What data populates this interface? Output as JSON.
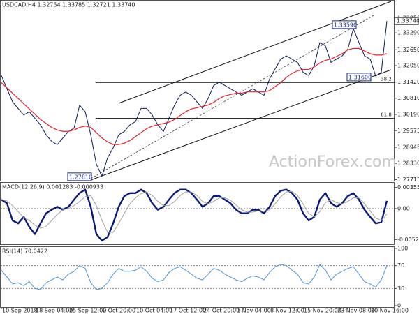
{
  "chart_data": [
    {
      "type": "line",
      "title": "USDCAD,H4 1.32754 1.33785 1.32721 1.33740",
      "watermark": "ActionForex.com",
      "categories": [
        "10 Sep 2018",
        null,
        null,
        null,
        null,
        null,
        "18 Sep 04:00",
        null,
        null,
        null,
        null,
        null,
        "25 Sep 12:00",
        null,
        null,
        null,
        null,
        null,
        "2 Oct 20:00",
        null,
        null,
        null,
        null,
        null,
        "10 Oct 04:00",
        null,
        null,
        null,
        null,
        null,
        "17 Oct 12:00",
        null,
        null,
        null,
        null,
        null,
        "24 Oct 20:00",
        null,
        null,
        null,
        null,
        null,
        "1 Nov 04:00",
        null,
        null,
        null,
        null,
        null,
        "8 Nov 12:00",
        null,
        null,
        null,
        null,
        null,
        "15 Nov 20:00",
        null,
        null,
        null,
        null,
        null,
        "23 Nov 08:00",
        null,
        null,
        null,
        null,
        null,
        "30 Nov 16:00",
        null,
        null,
        null
      ],
      "series": [
        {
          "color": "#0b1a5a",
          "values": [
            1.3167,
            1.3117,
            1.3067,
            1.3042,
            1.3017,
            1.30295,
            1.30045,
            1.29795,
            1.2942,
            1.2917,
            1.29045,
            1.29295,
            1.29545,
            1.2967,
            1.30545,
            1.30295,
            1.2942,
            1.28295,
            1.2785,
            1.28545,
            1.2892,
            1.2942,
            1.29545,
            1.29795,
            1.2992,
            1.3042,
            1.3042,
            1.3017,
            1.29795,
            1.29545,
            1.30045,
            1.30545,
            1.3092,
            1.31045,
            1.3092,
            1.3067,
            1.3042,
            1.30795,
            1.31295,
            1.3142,
            1.31295,
            1.3117,
            1.31045,
            1.3092,
            1.31045,
            1.3117,
            1.31045,
            1.3092,
            1.31545,
            1.3192,
            1.32295,
            1.3242,
            1.32295,
            1.3217,
            1.31795,
            1.3167,
            1.32045,
            1.3292,
            1.32795,
            1.3217,
            1.32295,
            1.3242,
            1.3267,
            1.3345,
            1.3292,
            1.3242,
            1.32295,
            1.3165,
            1.31795,
            1.3374
          ]
        },
        {
          "color": "#e8202a",
          "values": [
            1.314,
            1.312,
            1.31,
            1.308,
            1.306,
            1.304,
            1.302,
            1.3,
            1.2985,
            1.297,
            1.296,
            1.2955,
            1.2955,
            1.296,
            1.297,
            1.2975,
            1.297,
            1.295,
            1.293,
            1.2915,
            1.2905,
            1.2905,
            1.291,
            1.292,
            1.2935,
            1.295,
            1.2965,
            1.2975,
            1.298,
            1.2985,
            1.299,
            1.3,
            1.3015,
            1.303,
            1.304,
            1.3045,
            1.305,
            1.3055,
            1.3065,
            1.308,
            1.309,
            1.3095,
            1.31,
            1.31,
            1.3105,
            1.3105,
            1.3105,
            1.3105,
            1.311,
            1.3125,
            1.314,
            1.316,
            1.3175,
            1.3185,
            1.319,
            1.319,
            1.32,
            1.3215,
            1.3225,
            1.323,
            1.324,
            1.325,
            1.3265,
            1.327,
            1.327,
            1.326,
            1.325,
            1.3245,
            1.3245,
            1.325
          ]
        }
      ],
      "ylim": [
        1.277,
        1.3417
      ],
      "yticks": [
        {
          "value": 1.3385,
          "label": "1.33850"
        },
        {
          "value": 1.3329,
          "label": "1.33290"
        },
        {
          "value": 1.3265,
          "label": "1.32650"
        },
        {
          "value": 1.3205,
          "label": "1.32050"
        },
        {
          "value": 1.3142,
          "label": "1.31420"
        },
        {
          "value": 1.3081,
          "label": "1.30810"
        },
        {
          "value": 1.3019,
          "label": "1.30190"
        },
        {
          "value": 1.29575,
          "label": "1.29575"
        },
        {
          "value": 1.28945,
          "label": "1.28945"
        },
        {
          "value": 1.2833,
          "label": "1.28330"
        },
        {
          "value": 1.27715,
          "label": "1.27715"
        }
      ],
      "last_price": {
        "value": 1.3374,
        "label": "1.33740"
      },
      "annotations": [
        {
          "value": 1.3359,
          "label": "1.33590"
        },
        {
          "value": 1.316,
          "label": "1.31600"
        },
        {
          "value": 1.2781,
          "label": "1.27810"
        }
      ],
      "fib_levels": [
        {
          "ratio": 38.2,
          "price": 1.314
        },
        {
          "ratio": 61.8,
          "price": 1.30045
        }
      ]
    },
    {
      "type": "line",
      "title": "MACD(12,26,9) 0.001283 -0.000933",
      "series": [
        {
          "color": "#0b1a7a",
          "values": [
            0.0015,
            0.0009,
            -0.002,
            -0.0025,
            -0.0014,
            -0.0031,
            -0.0043,
            -0.0025,
            -0.0008,
            -0.0002,
            0.0003,
            -0.0002,
            0.0003,
            0.0015,
            0.0026,
            0.0032,
            0.0003,
            -0.0043,
            -0.0054,
            -0.0048,
            -0.0025,
            0.0003,
            0.0021,
            0.0026,
            0.0026,
            0.0032,
            0.0026,
            0.0009,
            -0.0002,
            0.0003,
            0.0015,
            0.0026,
            0.0032,
            0.0032,
            0.0026,
            0.0015,
            0.0003,
            0.0009,
            0.0021,
            0.0021,
            0.0015,
            0.0009,
            -0.0002,
            -0.0008,
            -0.0008,
            -0.0002,
            -0.0002,
            -0.0008,
            0.0003,
            0.0021,
            0.003,
            0.0032,
            0.0026,
            0.0015,
            -0.0008,
            -0.002,
            -0.0014,
            0.0015,
            0.0026,
            0.0009,
            0.0003,
            0.0009,
            0.0021,
            0.0026,
            0.0015,
            -0.0002,
            -0.0014,
            -0.0025,
            -0.0023,
            0.0013
          ]
        },
        {
          "color": "#a0a0a0",
          "values": [
            0.0015,
            0.0013,
            0.0005,
            -0.0005,
            -0.0015,
            -0.002,
            -0.0028,
            -0.0033,
            -0.003,
            -0.002,
            -0.001,
            -0.0002,
            0.0,
            0.0005,
            0.0012,
            0.002,
            0.0022,
            0.0005,
            -0.002,
            -0.004,
            -0.004,
            -0.0025,
            -0.0008,
            0.0008,
            0.0018,
            0.0025,
            0.0028,
            0.0022,
            0.0012,
            0.0005,
            0.0005,
            0.0012,
            0.0022,
            0.0028,
            0.0028,
            0.0022,
            0.0012,
            0.0008,
            0.0012,
            0.0018,
            0.0018,
            0.0014,
            0.0006,
            -0.0002,
            -0.0006,
            -0.0006,
            -0.0004,
            -0.0005,
            -0.0002,
            0.0008,
            0.002,
            0.0028,
            0.0029,
            0.0022,
            0.0008,
            -0.0008,
            -0.0014,
            -0.0005,
            0.001,
            0.0015,
            0.001,
            0.0008,
            0.0012,
            0.0018,
            0.0018,
            0.0008,
            -0.0004,
            -0.0016,
            -0.002,
            -0.0009
          ]
        }
      ],
      "ylim": [
        -0.006,
        0.0041
      ],
      "yticks": [
        0.003558,
        {
          "value": 0,
          "label": "0.00"
        },
        -0.005222
      ],
      "guide_lines": [
        0
      ]
    },
    {
      "type": "line",
      "title": "RSI(14) 70.0422",
      "series": [
        {
          "color": "#4d94db",
          "values": [
            62,
            50,
            38,
            40,
            35,
            42,
            30,
            28,
            40,
            45,
            50,
            45,
            55,
            60,
            70,
            65,
            40,
            28,
            30,
            40,
            55,
            65,
            60,
            60,
            62,
            68,
            60,
            48,
            42,
            45,
            58,
            65,
            68,
            62,
            55,
            48,
            45,
            55,
            65,
            62,
            55,
            50,
            45,
            42,
            48,
            52,
            50,
            45,
            58,
            68,
            72,
            70,
            62,
            55,
            40,
            38,
            50,
            72,
            62,
            45,
            55,
            60,
            65,
            68,
            55,
            42,
            38,
            32,
            45,
            70.0422
          ]
        }
      ],
      "ylim": [
        0,
        100
      ],
      "yticks": [
        100,
        70,
        30,
        0
      ],
      "guide_lines": [
        70,
        30
      ]
    }
  ]
}
